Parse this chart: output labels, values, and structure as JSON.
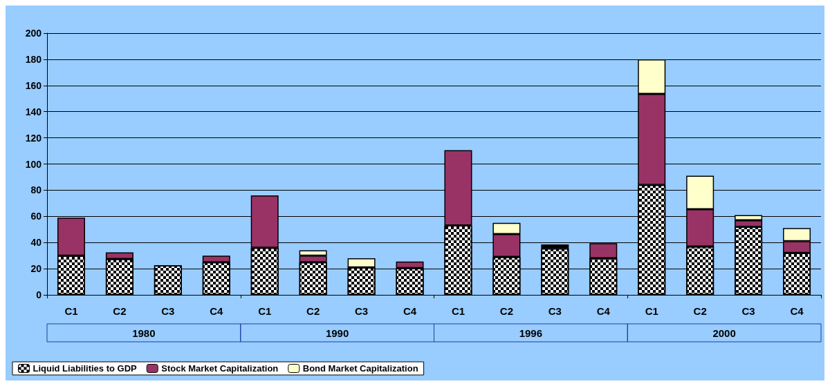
{
  "chart_data": {
    "type": "bar",
    "stacked": true,
    "categories": [
      "C1",
      "C2",
      "C3",
      "C4",
      "C1",
      "C2",
      "C3",
      "C4",
      "C1",
      "C2",
      "C3",
      "C4",
      "C1",
      "C2",
      "C3",
      "C4"
    ],
    "series": [
      {
        "name": "Liquid Liabilities to GDP",
        "color": "#ffffff",
        "values": [
          30,
          27.5,
          22.5,
          25,
          36,
          25,
          21,
          20.5,
          53,
          29,
          35.5,
          28,
          84,
          37,
          52,
          32
        ]
      },
      {
        "name": "Stock Market Capitalization",
        "color": "#993366",
        "values": [
          29,
          5,
          null,
          5,
          40,
          5,
          null,
          5,
          57.5,
          17.5,
          1.5,
          11.5,
          69.5,
          28.5,
          5,
          9
        ]
      },
      {
        "name": "Bond Market Capitalization",
        "color": "#ffffcc",
        "values": [
          null,
          null,
          null,
          null,
          null,
          4,
          7,
          null,
          null,
          8.5,
          1.5,
          null,
          26.5,
          25.5,
          4,
          10
        ]
      }
    ],
    "annotations": [
      "1980",
      "1990",
      "1996",
      "2000"
    ],
    "ylim": [
      0,
      200
    ],
    "yticks": [
      0,
      20,
      40,
      60,
      80,
      100,
      120,
      140,
      160,
      180,
      200
    ],
    "grid": "y",
    "legend": "bottom"
  }
}
